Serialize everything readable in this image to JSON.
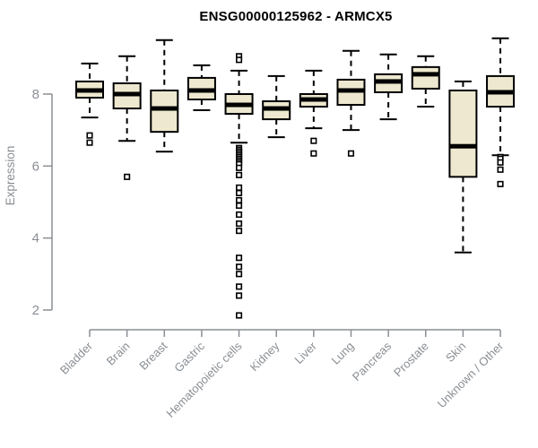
{
  "title": "ENSG00000125962 - ARMCX5",
  "colors": {
    "box_fill": "#EDE8CF",
    "box_stroke": "#000000",
    "axis_gray": "#8a8f94",
    "title_color": "#000000",
    "background": "#ffffff"
  },
  "chart_data": {
    "type": "boxplot",
    "title": "ENSG00000125962 - ARMCX5",
    "xlabel": "",
    "ylabel": "Expression",
    "ylim": [
      1.7,
      9.7
    ],
    "yticks": [
      2,
      4,
      6,
      8
    ],
    "grid": false,
    "legend": null,
    "categories": [
      "Bladder",
      "Brain",
      "Breast",
      "Gastric",
      "Hematopoietic cells",
      "Kidney",
      "Liver",
      "Lung",
      "Pancreas",
      "Prostate",
      "Skin",
      "Unknown / Other"
    ],
    "series": [
      {
        "name": "Bladder",
        "whislo": 7.35,
        "q1": 7.9,
        "med": 8.1,
        "q3": 8.35,
        "whishi": 8.85,
        "outliers": [
          6.85,
          6.65
        ]
      },
      {
        "name": "Brain",
        "whislo": 6.7,
        "q1": 7.6,
        "med": 8.0,
        "q3": 8.3,
        "whishi": 9.05,
        "outliers": [
          5.7
        ]
      },
      {
        "name": "Breast",
        "whislo": 6.4,
        "q1": 6.95,
        "med": 7.6,
        "q3": 8.1,
        "whishi": 9.5,
        "outliers": []
      },
      {
        "name": "Gastric",
        "whislo": 7.55,
        "q1": 7.85,
        "med": 8.1,
        "q3": 8.45,
        "whishi": 8.8,
        "outliers": []
      },
      {
        "name": "Hematopoietic cells",
        "whislo": 6.65,
        "q1": 7.45,
        "med": 7.7,
        "q3": 8.0,
        "whishi": 8.65,
        "outliers": [
          9.05,
          8.95,
          6.5,
          6.45,
          6.4,
          6.35,
          6.3,
          6.25,
          6.2,
          6.15,
          6.1,
          6.05,
          5.95,
          5.75,
          5.4,
          5.25,
          5.05,
          4.9,
          4.65,
          4.4,
          4.2,
          3.45,
          3.2,
          3.0,
          2.65,
          2.4,
          1.85
        ]
      },
      {
        "name": "Kidney",
        "whislo": 6.8,
        "q1": 7.3,
        "med": 7.6,
        "q3": 7.8,
        "whishi": 8.5,
        "outliers": []
      },
      {
        "name": "Liver",
        "whislo": 7.05,
        "q1": 7.65,
        "med": 7.85,
        "q3": 8.0,
        "whishi": 8.65,
        "outliers": [
          6.7,
          6.35
        ]
      },
      {
        "name": "Lung",
        "whislo": 7.0,
        "q1": 7.7,
        "med": 8.1,
        "q3": 8.4,
        "whishi": 9.2,
        "outliers": [
          6.35
        ]
      },
      {
        "name": "Pancreas",
        "whislo": 7.3,
        "q1": 8.05,
        "med": 8.35,
        "q3": 8.55,
        "whishi": 9.1,
        "outliers": []
      },
      {
        "name": "Prostate",
        "whislo": 7.65,
        "q1": 8.15,
        "med": 8.55,
        "q3": 8.75,
        "whishi": 9.05,
        "outliers": []
      },
      {
        "name": "Skin",
        "whislo": 3.6,
        "q1": 5.7,
        "med": 6.55,
        "q3": 8.1,
        "whishi": 8.35,
        "outliers": []
      },
      {
        "name": "Unknown / Other",
        "whislo": 6.3,
        "q1": 7.65,
        "med": 8.05,
        "q3": 8.5,
        "whishi": 9.55,
        "outliers": [
          6.25,
          6.2,
          6.1,
          5.9,
          5.5
        ]
      }
    ]
  }
}
